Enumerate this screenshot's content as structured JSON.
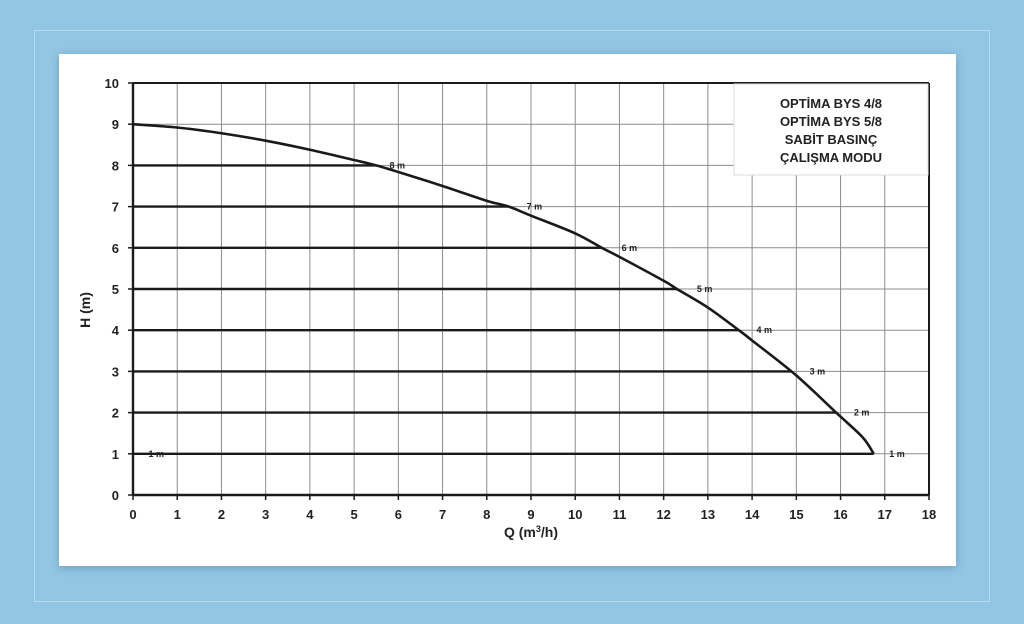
{
  "chart_data": {
    "type": "line",
    "title_lines": [
      "OPTİMA BYS 4/8",
      "OPTİMA BYS 5/8",
      "SABİT BASINÇ",
      "ÇALIŞMA MODU"
    ],
    "xlabel_main": "Q (m",
    "xlabel_sup": "3",
    "xlabel_end": "/h)",
    "ylabel": "H (m)",
    "xlim": [
      0,
      18
    ],
    "ylim": [
      0,
      10
    ],
    "x_ticks": [
      "0",
      "1",
      "2",
      "3",
      "4",
      "5",
      "6",
      "7",
      "8",
      "9",
      "10",
      "11",
      "12",
      "13",
      "14",
      "15",
      "16",
      "17",
      "18"
    ],
    "y_ticks": [
      "0",
      "1",
      "2",
      "3",
      "4",
      "5",
      "6",
      "7",
      "8",
      "9",
      "10"
    ],
    "grid": true,
    "pump_curve": {
      "x": [
        0,
        1,
        2,
        3,
        4,
        5,
        5.5,
        6,
        7,
        8,
        8.5,
        9,
        10,
        10.6,
        11,
        12,
        12.3,
        13,
        13.7,
        14,
        15,
        15.9,
        16.5,
        16.75
      ],
      "y": [
        9.0,
        8.92,
        8.78,
        8.6,
        8.38,
        8.13,
        8.0,
        7.84,
        7.5,
        7.14,
        7.0,
        6.78,
        6.35,
        6.0,
        5.78,
        5.2,
        5.0,
        4.55,
        4.0,
        3.75,
        2.9,
        2.0,
        1.4,
        1.0
      ]
    },
    "pressure_lines": [
      {
        "label": "8 m",
        "y": 8,
        "x_end": 5.5,
        "label_x": 5.8
      },
      {
        "label": "7 m",
        "y": 7,
        "x_end": 8.5,
        "label_x": 8.9
      },
      {
        "label": "6 m",
        "y": 6,
        "x_end": 10.6,
        "label_x": 11.05
      },
      {
        "label": "5 m",
        "y": 5,
        "x_end": 12.3,
        "label_x": 12.75
      },
      {
        "label": "4 m",
        "y": 4,
        "x_end": 13.7,
        "label_x": 14.1
      },
      {
        "label": "3 m",
        "y": 3,
        "x_end": 14.9,
        "label_x": 15.3
      },
      {
        "label": "2 m",
        "y": 2,
        "x_end": 15.9,
        "label_x": 16.3
      },
      {
        "label": "1 m",
        "y": 1,
        "x_end": 16.75,
        "label_x": 17.1
      }
    ],
    "extra_labels": [
      {
        "label": "1 m",
        "x": 0.35,
        "y": 1
      }
    ],
    "colors": {
      "line": "#1a1a1a",
      "grid": "#8c8c8c",
      "axis": "#1a1a1a"
    }
  }
}
